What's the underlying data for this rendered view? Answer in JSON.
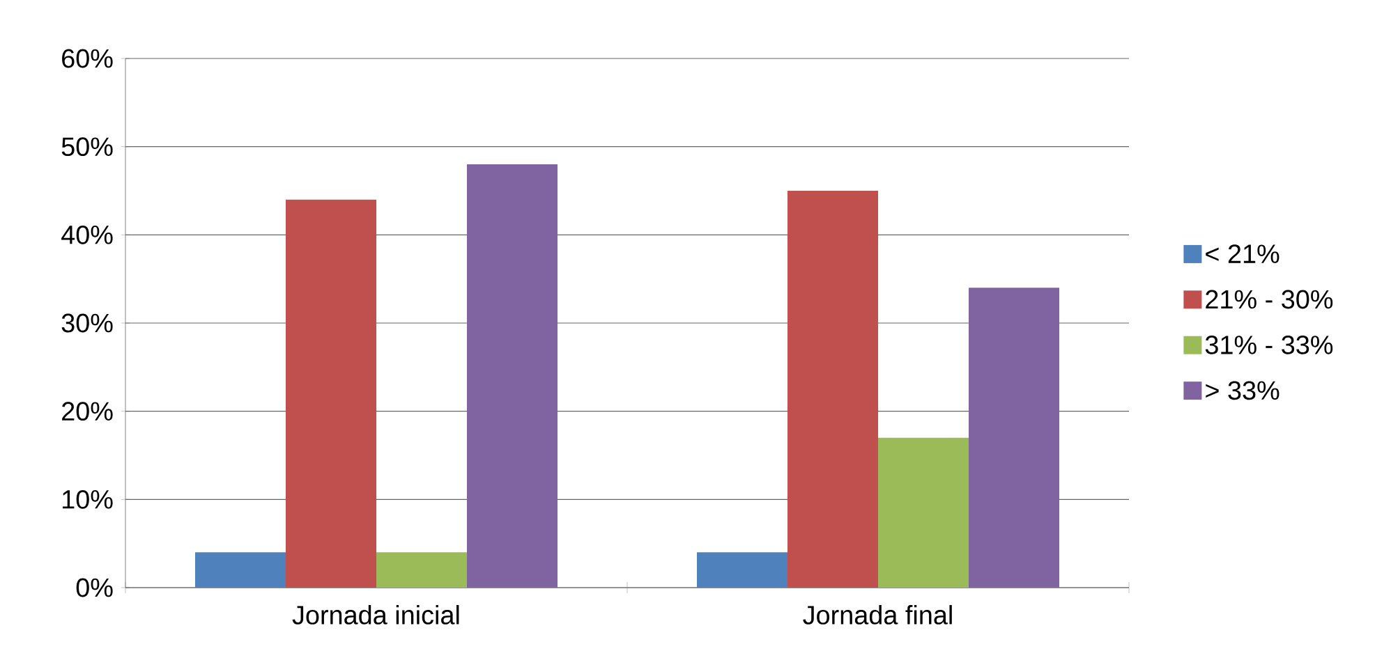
{
  "chart_data": {
    "type": "bar",
    "categories": [
      "Jornada inicial",
      "Jornada final"
    ],
    "series": [
      {
        "name": "< 21%",
        "color": "#4f81bd",
        "values": [
          4,
          4
        ]
      },
      {
        "name": "21% - 30%",
        "color": "#c0504d",
        "values": [
          44,
          45
        ]
      },
      {
        "name": "31% - 33%",
        "color": "#9bbb59",
        "values": [
          4,
          17
        ]
      },
      {
        "name": "> 33%",
        "color": "#8064a2",
        "values": [
          48,
          34
        ]
      }
    ],
    "ylim": [
      0,
      60
    ],
    "yticks": [
      {
        "value": 0,
        "label": "0%"
      },
      {
        "value": 10,
        "label": "10%"
      },
      {
        "value": 20,
        "label": "20%"
      },
      {
        "value": 30,
        "label": "30%"
      },
      {
        "value": 40,
        "label": "40%"
      },
      {
        "value": 50,
        "label": "50%"
      },
      {
        "value": 60,
        "label": "60%"
      }
    ],
    "grid": "y",
    "legend": "right"
  }
}
